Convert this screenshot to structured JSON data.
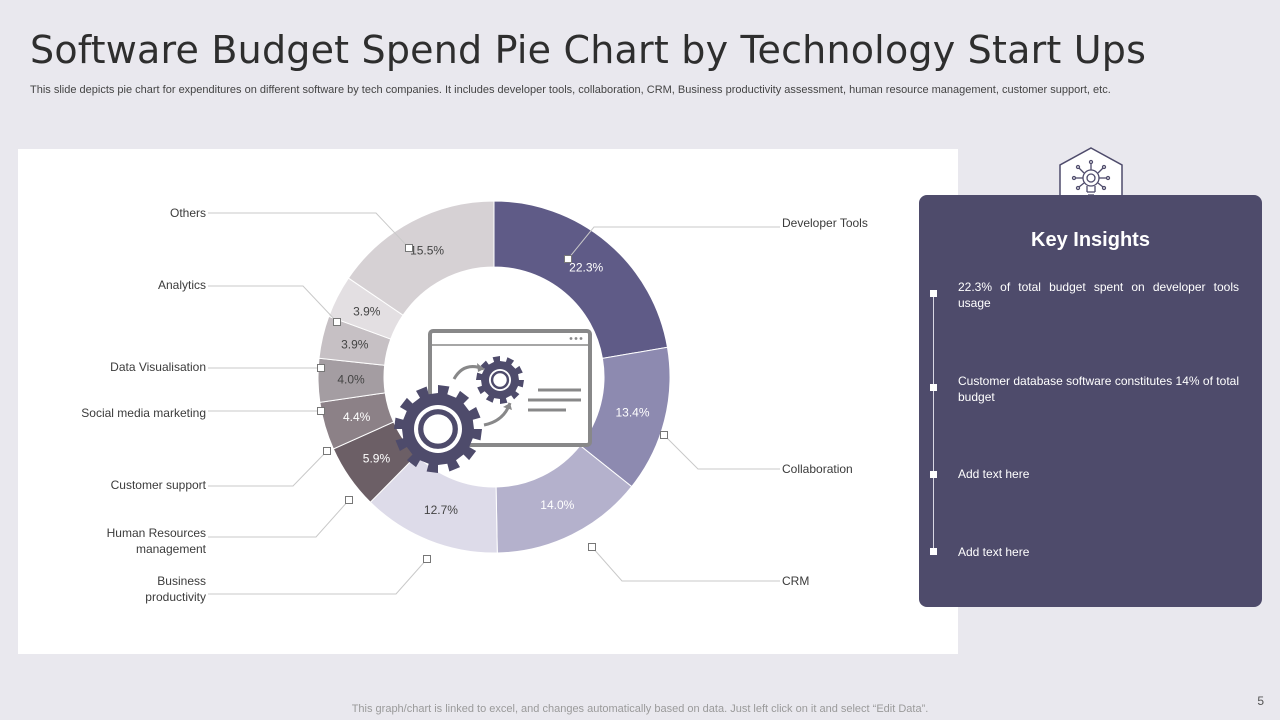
{
  "title": "Software Budget Spend Pie Chart by Technology Start Ups",
  "subtitle": "This slide depicts pie chart for expenditures on different software by tech companies. It includes developer tools, collaboration, CRM, Business productivity assessment, human resource management, customer support, etc.",
  "chart_data": {
    "type": "pie",
    "style": "donut",
    "slices": [
      {
        "label": "Developer  Tools",
        "value": 22.3,
        "value_label": "22.3%",
        "color": "#5f5b87"
      },
      {
        "label": "Collaboration",
        "value": 13.4,
        "value_label": "13.4%",
        "color": "#8d8ab0"
      },
      {
        "label": "CRM",
        "value": 14.0,
        "value_label": "14.0%",
        "color": "#b4b1cc"
      },
      {
        "label": "Business productivity",
        "value": 12.7,
        "value_label": "12.7%",
        "color": "#dddbe9"
      },
      {
        "label": "Human Resources management",
        "value": 5.9,
        "value_label": "5.9%",
        "color": "#6c5f66"
      },
      {
        "label": "Customer support",
        "value": 4.4,
        "value_label": "4.4%",
        "color": "#8c8187"
      },
      {
        "label": "Social media marketing",
        "value": 4.0,
        "value_label": "4.0%",
        "color": "#a49da2"
      },
      {
        "label": "Data Visualisation",
        "value": 3.9,
        "value_label": "3.9%",
        "color": "#c6c0c4"
      },
      {
        "label": "Analytics",
        "value": 3.9,
        "value_label": "3.9%",
        "color": "#e3dfe2"
      },
      {
        "label": "Others",
        "value": 15.5,
        "value_label": "15.5%",
        "color": "#d6d1d4"
      }
    ]
  },
  "insights": {
    "title": "Key Insights",
    "icon": "lightbulb-network-icon",
    "items": [
      "22.3% of total budget spent on developer  tools usage",
      "Customer database software constitutes 14% of total budget",
      "Add text here",
      "Add text here"
    ]
  },
  "footer_note": "This graph/chart is linked to excel,  and changes automatically based on data. Just left click on it and select “Edit Data”.",
  "page_number": "5",
  "colors": {
    "background": "#e9e8ee",
    "panel": "#4e4b6b",
    "gear": "#4e4b6b"
  }
}
